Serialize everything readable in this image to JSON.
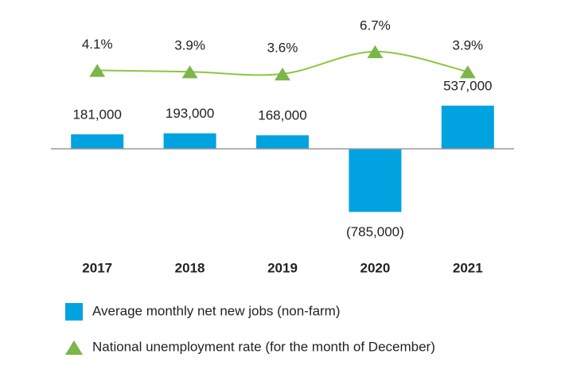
{
  "chart_data": {
    "type": "bar",
    "categories": [
      "2017",
      "2018",
      "2019",
      "2020",
      "2021"
    ],
    "series": [
      {
        "name": "Average monthly net new jobs (non-farm)",
        "color": "#00a3e0",
        "type": "bar",
        "values": [
          181000,
          193000,
          168000,
          -785000,
          537000
        ],
        "value_labels": [
          "181,000",
          "193,000",
          "168,000",
          "(785,000)",
          "537,000"
        ]
      },
      {
        "name": "National unemployment rate (for the month of December)",
        "color": "#7ab648",
        "type": "line",
        "axis": "y2",
        "values": [
          4.1,
          3.9,
          3.6,
          6.7,
          3.9
        ],
        "value_labels": [
          "4.1%",
          "3.9%",
          "3.6%",
          "6.7%",
          "3.9%"
        ]
      }
    ],
    "ylim": [
      -800000,
      1000000
    ],
    "y2lim": [
      0,
      10
    ]
  }
}
